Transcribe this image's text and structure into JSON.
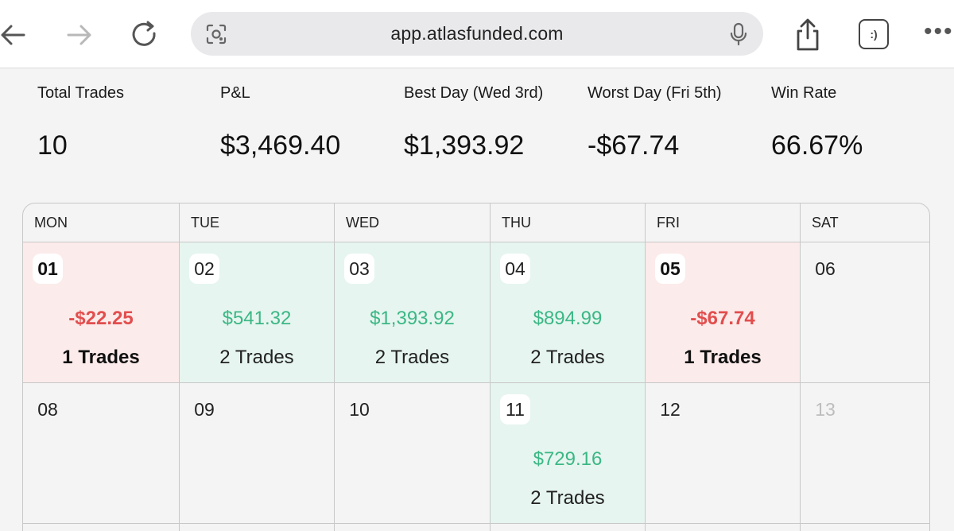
{
  "browser": {
    "url": "app.atlasfunded.com",
    "tabs_label": ":)",
    "more_label": "•••"
  },
  "stats": [
    {
      "label": "Total Trades",
      "value": "10"
    },
    {
      "label": "P&L",
      "value": "$3,469.40"
    },
    {
      "label": "Best Day (Wed 3rd)",
      "value": "$1,393.92"
    },
    {
      "label": "Worst Day (Fri 5th)",
      "value": "-$67.74"
    },
    {
      "label": "Win Rate",
      "value": "66.67%"
    }
  ],
  "calendar": {
    "weekdays": [
      "MON",
      "TUE",
      "WED",
      "THU",
      "FRI",
      "SAT"
    ],
    "week1": [
      {
        "day": "01",
        "pnl": "-$22.25",
        "trades": "1 Trades",
        "status": "loss"
      },
      {
        "day": "02",
        "pnl": "$541.32",
        "trades": "2 Trades",
        "status": "win"
      },
      {
        "day": "03",
        "pnl": "$1,393.92",
        "trades": "2 Trades",
        "status": "win"
      },
      {
        "day": "04",
        "pnl": "$894.99",
        "trades": "2 Trades",
        "status": "win"
      },
      {
        "day": "05",
        "pnl": "-$67.74",
        "trades": "1 Trades",
        "status": "loss"
      },
      {
        "day": "06",
        "pnl": "",
        "trades": "",
        "status": "none"
      }
    ],
    "week2": [
      {
        "day": "08",
        "pnl": "",
        "trades": "",
        "status": "none"
      },
      {
        "day": "09",
        "pnl": "",
        "trades": "",
        "status": "none"
      },
      {
        "day": "10",
        "pnl": "",
        "trades": "",
        "status": "none"
      },
      {
        "day": "11",
        "pnl": "$729.16",
        "trades": "2 Trades",
        "status": "win"
      },
      {
        "day": "12",
        "pnl": "",
        "trades": "",
        "status": "none"
      },
      {
        "day": "13",
        "pnl": "",
        "trades": "",
        "status": "none"
      }
    ]
  },
  "colors": {
    "loss_bg": "#fbebea",
    "win_bg": "#e6f5ef",
    "loss_text": "#e24e4e",
    "win_text": "#3bb785"
  }
}
